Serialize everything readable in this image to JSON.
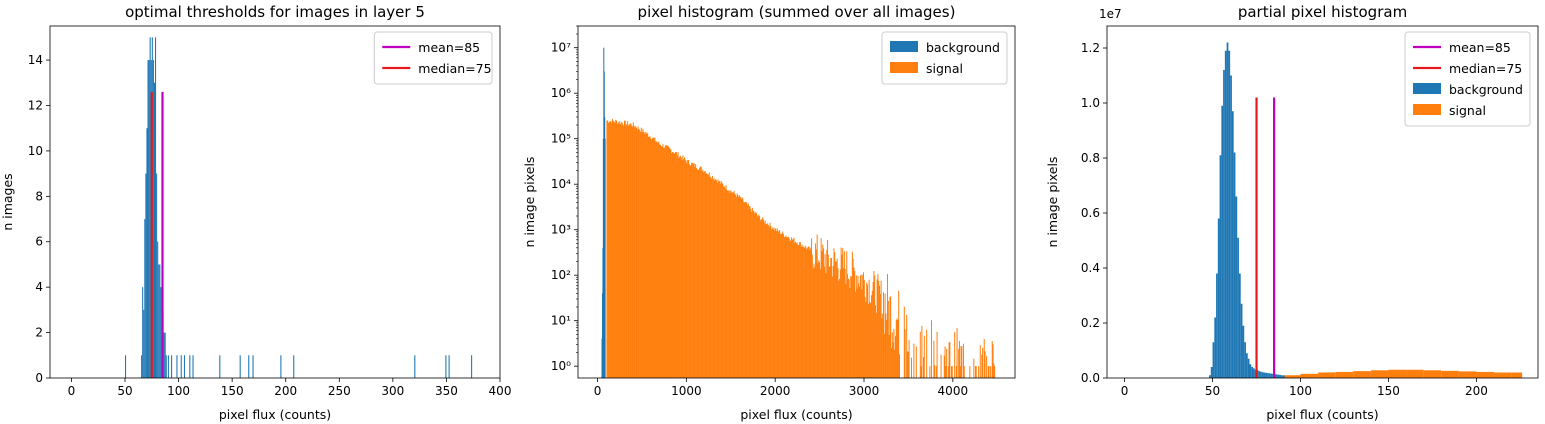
{
  "colors": {
    "background": "#1f77b4",
    "signal": "#ff7f0e",
    "mean": "#bf00bf",
    "median": "#e31a1c"
  },
  "chart_data": [
    {
      "type": "bar",
      "title": "optimal thresholds for images in layer 5",
      "xlabel": "pixel flux (counts)",
      "ylabel": "n images",
      "xlim": [
        -20,
        400
      ],
      "ylim": [
        0,
        15.5
      ],
      "xticks": [
        0,
        50,
        100,
        150,
        200,
        250,
        300,
        350,
        400
      ],
      "yticks": [
        0,
        2,
        4,
        6,
        8,
        10,
        12,
        14
      ],
      "bar_width": 1,
      "bars": [
        [
          50,
          1
        ],
        [
          65,
          1
        ],
        [
          66,
          4
        ],
        [
          67,
          3
        ],
        [
          68,
          7
        ],
        [
          69,
          9
        ],
        [
          70,
          11
        ],
        [
          71,
          14
        ],
        [
          72,
          14
        ],
        [
          73,
          15
        ],
        [
          74,
          14
        ],
        [
          75,
          15
        ],
        [
          76,
          14
        ],
        [
          77,
          13
        ],
        [
          78,
          15
        ],
        [
          79,
          9
        ],
        [
          80,
          6
        ],
        [
          81,
          5
        ],
        [
          82,
          5
        ],
        [
          83,
          4
        ],
        [
          84,
          4
        ],
        [
          85,
          3
        ],
        [
          86,
          2
        ],
        [
          87,
          2
        ],
        [
          88,
          1
        ],
        [
          90,
          1
        ],
        [
          93,
          1
        ],
        [
          98,
          1
        ],
        [
          102,
          1
        ],
        [
          105,
          1
        ],
        [
          110,
          1
        ],
        [
          113,
          1
        ],
        [
          138,
          1
        ],
        [
          157,
          1
        ],
        [
          165,
          1
        ],
        [
          169,
          1
        ],
        [
          195,
          1
        ],
        [
          207,
          1
        ],
        [
          320,
          1
        ],
        [
          349,
          1
        ],
        [
          352,
          1
        ],
        [
          373,
          1
        ]
      ],
      "vlines": [
        {
          "name": "mean=85",
          "x": 85,
          "height": 12.6,
          "color": "#bf00bf"
        },
        {
          "name": "median=75",
          "x": 75,
          "height": 12.6,
          "color": "#e31a1c"
        }
      ],
      "legend": {
        "placement": "upper right",
        "entries": [
          "mean=85",
          "median=75"
        ]
      }
    },
    {
      "type": "bar",
      "title": "pixel histogram (summed over all images)",
      "xlabel": "pixel flux (counts)",
      "ylabel": "n image pixels",
      "yscale": "log",
      "xlim": [
        -220,
        4700
      ],
      "ylim": [
        0.55,
        30000000
      ],
      "xticks": [
        0,
        1000,
        2000,
        3000,
        4000
      ],
      "yticks": [
        1,
        10,
        100,
        1000,
        10000,
        100000,
        1000000,
        10000000
      ],
      "ytick_labels": [
        "10⁰",
        "10¹",
        "10²",
        "10³",
        "10⁴",
        "10⁵",
        "10⁶",
        "10⁷"
      ],
      "series": [
        {
          "name": "background",
          "color": "#1f77b4",
          "bins": [
            [
              45,
              4
            ],
            [
              50,
              40
            ],
            [
              55,
              400
            ],
            [
              60,
              100000
            ],
            [
              65,
              10000000
            ],
            [
              70,
              3000000
            ],
            [
              75,
              300000
            ],
            [
              80,
              100000
            ]
          ]
        },
        {
          "name": "signal",
          "color": "#ff7f0e",
          "points": [
            [
              100,
              250000
            ],
            [
              200,
              240000
            ],
            [
              300,
              220000
            ],
            [
              400,
              200000
            ],
            [
              500,
              150000
            ],
            [
              600,
              110000
            ],
            [
              700,
              75000
            ],
            [
              800,
              60000
            ],
            [
              900,
              45000
            ],
            [
              1000,
              32000
            ],
            [
              1200,
              20000
            ],
            [
              1400,
              10000
            ],
            [
              1600,
              5000
            ],
            [
              1800,
              2000
            ],
            [
              2000,
              1000
            ],
            [
              2200,
              600
            ],
            [
              2400,
              350
            ],
            [
              2600,
              220
            ],
            [
              2800,
              150
            ],
            [
              3000,
              80
            ],
            [
              3200,
              30
            ],
            [
              3400,
              8
            ],
            [
              3600,
              3
            ],
            [
              3800,
              1.5
            ],
            [
              4000,
              1.2
            ],
            [
              4200,
              1
            ],
            [
              4400,
              1
            ],
            [
              4480,
              1
            ]
          ]
        }
      ],
      "legend": {
        "placement": "upper right",
        "entries": [
          "background",
          "signal"
        ]
      }
    },
    {
      "type": "bar",
      "title": "partial pixel histogram",
      "xlabel": "pixel flux (counts)",
      "ylabel": "n image pixels",
      "y_multiplier": "1e7",
      "xlim": [
        -10,
        235
      ],
      "ylim": [
        0,
        1.28
      ],
      "xticks": [
        0,
        50,
        100,
        150,
        200
      ],
      "yticks": [
        0.0,
        0.2,
        0.4,
        0.6,
        0.8,
        1.0,
        1.2
      ],
      "ytick_labels": [
        "0.0",
        "0.2",
        "0.4",
        "0.6",
        "0.8",
        "1.0",
        "1.2"
      ],
      "series": [
        {
          "name": "background",
          "color": "#1f77b4",
          "bins": [
            [
              48,
              0.01
            ],
            [
              49,
              0.04
            ],
            [
              50,
              0.13
            ],
            [
              51,
              0.22
            ],
            [
              52,
              0.38
            ],
            [
              53,
              0.58
            ],
            [
              54,
              0.81
            ],
            [
              55,
              0.99
            ],
            [
              56,
              1.12
            ],
            [
              57,
              1.19
            ],
            [
              58,
              1.22
            ],
            [
              59,
              1.19
            ],
            [
              60,
              1.1
            ],
            [
              61,
              0.97
            ],
            [
              62,
              0.82
            ],
            [
              63,
              0.66
            ],
            [
              64,
              0.51
            ],
            [
              65,
              0.38
            ],
            [
              66,
              0.27
            ],
            [
              67,
              0.19
            ],
            [
              68,
              0.13
            ],
            [
              69,
              0.09
            ],
            [
              70,
              0.07
            ],
            [
              71,
              0.05
            ],
            [
              72,
              0.04
            ],
            [
              73,
              0.035
            ],
            [
              74,
              0.03
            ],
            [
              75,
              0.03
            ],
            [
              76,
              0.025
            ],
            [
              77,
              0.023
            ],
            [
              78,
              0.021
            ],
            [
              79,
              0.02
            ],
            [
              80,
              0.019
            ],
            [
              81,
              0.018
            ],
            [
              82,
              0.017
            ],
            [
              83,
              0.016
            ],
            [
              84,
              0.015
            ],
            [
              85,
              0.014
            ],
            [
              86,
              0.013
            ],
            [
              87,
              0.012
            ],
            [
              88,
              0.011
            ],
            [
              89,
              0.01
            ],
            [
              90,
              0.009
            ]
          ]
        },
        {
          "name": "signal",
          "color": "#ff7f0e",
          "points": [
            [
              90,
              0.01
            ],
            [
              100,
              0.015
            ],
            [
              110,
              0.02
            ],
            [
              120,
              0.022
            ],
            [
              130,
              0.025
            ],
            [
              140,
              0.028
            ],
            [
              150,
              0.03
            ],
            [
              160,
              0.03
            ],
            [
              170,
              0.028
            ],
            [
              180,
              0.026
            ],
            [
              190,
              0.024
            ],
            [
              200,
              0.022
            ],
            [
              210,
              0.02
            ],
            [
              220,
              0.02
            ],
            [
              226,
              0.019
            ]
          ]
        }
      ],
      "vlines": [
        {
          "name": "mean=85",
          "x": 85,
          "height": 1.02,
          "color": "#bf00bf"
        },
        {
          "name": "median=75",
          "x": 75,
          "height": 1.02,
          "color": "#e31a1c"
        }
      ],
      "legend": {
        "placement": "upper right",
        "entries": [
          "mean=85",
          "median=75",
          "background",
          "signal"
        ]
      }
    }
  ]
}
